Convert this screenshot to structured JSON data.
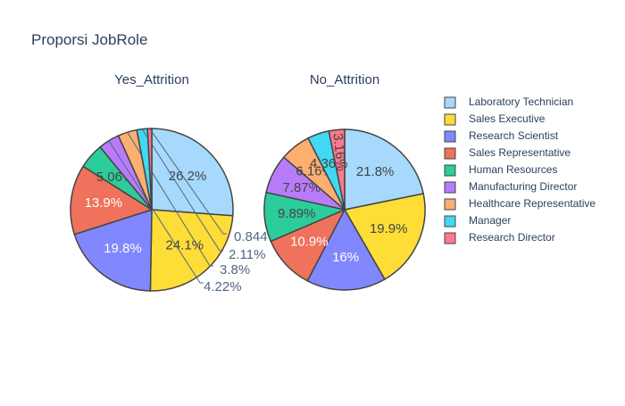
{
  "chart_data": {
    "type": "pie",
    "title": "Proporsi JobRole",
    "legend_position": "right",
    "categories": [
      "Laboratory Technician",
      "Sales Executive",
      "Research Scientist",
      "Sales Representative",
      "Human Resources",
      "Manufacturing Director",
      "Healthcare Representative",
      "Manager",
      "Research Director"
    ],
    "colors": [
      "#a6d9fc",
      "#fedd37",
      "#8187fc",
      "#ee725c",
      "#2dcc9b",
      "#b87cfa",
      "#fdae71",
      "#40d8f2",
      "#fc798f"
    ],
    "pies": [
      {
        "title": "Yes_Attrition",
        "values": [
          26.2,
          24.1,
          19.8,
          13.9,
          5.06,
          4.22,
          3.8,
          2.11,
          0.844
        ],
        "labels": [
          "26.2%",
          "24.1%",
          "19.8%",
          "13.9%",
          "5.06%",
          "4.22%",
          "3.8%",
          "2.11%",
          "0.844%"
        ]
      },
      {
        "title": "No_Attrition",
        "values": [
          21.8,
          19.9,
          16.0,
          10.9,
          9.89,
          7.87,
          6.16,
          4.36,
          3.16
        ],
        "labels": [
          "21.8%",
          "19.9%",
          "16%",
          "10.9%",
          "9.89%",
          "7.87%",
          "6.16%",
          "4.36%",
          "3.16%"
        ]
      }
    ]
  }
}
